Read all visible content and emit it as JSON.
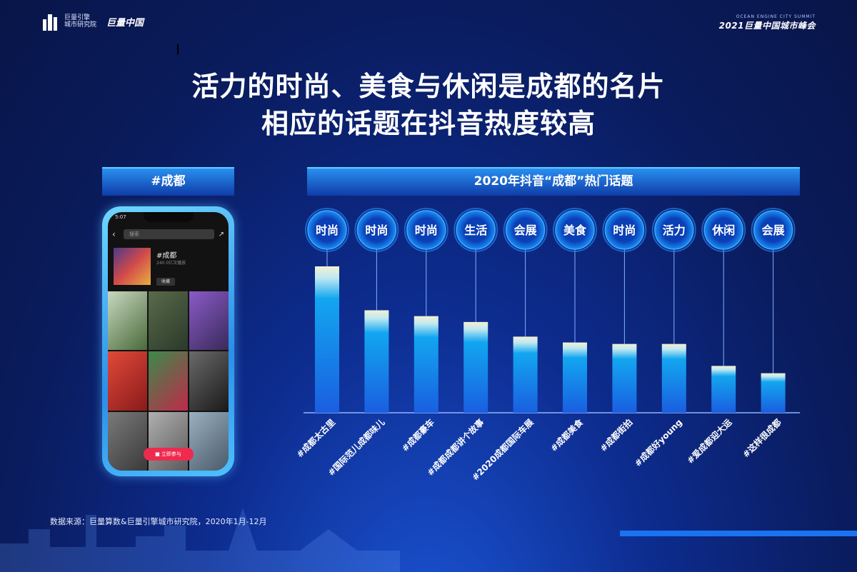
{
  "brand": {
    "left_org": "巨量引擎\n城市研究院",
    "left_logo": "巨量中国",
    "right_small": "OCEAN ENGINE CITY SUMMIT",
    "right_big": "2021巨量中国城市峰会"
  },
  "title_lines": [
    "活力的时尚、美食与休闲是成都的名片",
    "相应的话题在抖音热度较高"
  ],
  "left_panel": {
    "header": "#成都",
    "phone": {
      "status_time": "5:07",
      "search_placeholder": "搜索",
      "topic_name": "#成都",
      "topic_sub": "240.0亿次播放",
      "fav_label": "收藏",
      "join_button": "立即参与"
    }
  },
  "right_panel": {
    "header": "2020年抖音“成都”热门话题"
  },
  "chart_data": {
    "type": "bar",
    "title": "2020年抖音“成都”热门话题",
    "categories": [
      "#成都太古里",
      "#国际范儿成都味儿",
      "#成都豪车",
      "#成都成都讲个故事",
      "#2020成都国际车展",
      "#成都美食",
      "#成都街拍",
      "#成都好young",
      "#爱成都迎大运",
      "#这样很成都"
    ],
    "tags": [
      "时尚",
      "时尚",
      "时尚",
      "生活",
      "会展",
      "美食",
      "时尚",
      "活力",
      "休闲",
      "会展"
    ],
    "values": [
      100,
      70,
      66,
      62,
      52,
      48,
      47,
      47,
      32,
      27
    ],
    "value_unit": "relative heat (unlabeled axis)",
    "grid": false,
    "legend": "none"
  },
  "source_note": "数据来源：巨量算数&巨量引擎城市研究院，2020年1月-12月",
  "colors": {
    "bar_top": "#f3f0d4",
    "bar_mid": "#12a6f0",
    "bar_bottom": "#1a5ee0",
    "circle": "#0b5fe0",
    "accent": "#1a73f0"
  }
}
